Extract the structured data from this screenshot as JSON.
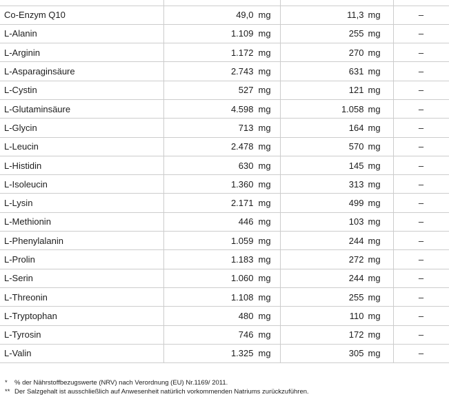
{
  "table": {
    "unit": "mg",
    "rows": [
      {
        "name": "Co-Enzym Q10",
        "per100_value": "49,0",
        "per100_unit": "mg",
        "portion_value": "11,3",
        "portion_unit": "mg",
        "nrv": "–"
      },
      {
        "name": "L-Alanin",
        "per100_value": "1.109",
        "per100_unit": "mg",
        "portion_value": "255",
        "portion_unit": "mg",
        "nrv": "–"
      },
      {
        "name": "L-Arginin",
        "per100_value": "1.172",
        "per100_unit": "mg",
        "portion_value": "270",
        "portion_unit": "mg",
        "nrv": "–"
      },
      {
        "name": "L-Asparaginsäure",
        "per100_value": "2.743",
        "per100_unit": "mg",
        "portion_value": "631",
        "portion_unit": "mg",
        "nrv": "–"
      },
      {
        "name": "L-Cystin",
        "per100_value": "527",
        "per100_unit": "mg",
        "portion_value": "121",
        "portion_unit": "mg",
        "nrv": "–"
      },
      {
        "name": "L-Glutaminsäure",
        "per100_value": "4.598",
        "per100_unit": "mg",
        "portion_value": "1.058",
        "portion_unit": "mg",
        "nrv": "–"
      },
      {
        "name": "L-Glycin",
        "per100_value": "713",
        "per100_unit": "mg",
        "portion_value": "164",
        "portion_unit": "mg",
        "nrv": "–"
      },
      {
        "name": "L-Leucin",
        "per100_value": "2.478",
        "per100_unit": "mg",
        "portion_value": "570",
        "portion_unit": "mg",
        "nrv": "–"
      },
      {
        "name": "L-Histidin",
        "per100_value": "630",
        "per100_unit": "mg",
        "portion_value": "145",
        "portion_unit": "mg",
        "nrv": "–"
      },
      {
        "name": "L-Isoleucin",
        "per100_value": "1.360",
        "per100_unit": "mg",
        "portion_value": "313",
        "portion_unit": "mg",
        "nrv": "–"
      },
      {
        "name": "L-Lysin",
        "per100_value": "2.171",
        "per100_unit": "mg",
        "portion_value": "499",
        "portion_unit": "mg",
        "nrv": "–"
      },
      {
        "name": "L-Methionin",
        "per100_value": "446",
        "per100_unit": "mg",
        "portion_value": "103",
        "portion_unit": "mg",
        "nrv": "–"
      },
      {
        "name": "L-Phenylalanin",
        "per100_value": "1.059",
        "per100_unit": "mg",
        "portion_value": "244",
        "portion_unit": "mg",
        "nrv": "–"
      },
      {
        "name": "L-Prolin",
        "per100_value": "1.183",
        "per100_unit": "mg",
        "portion_value": "272",
        "portion_unit": "mg",
        "nrv": "–"
      },
      {
        "name": "L-Serin",
        "per100_value": "1.060",
        "per100_unit": "mg",
        "portion_value": "244",
        "portion_unit": "mg",
        "nrv": "–"
      },
      {
        "name": "L-Threonin",
        "per100_value": "1.108",
        "per100_unit": "mg",
        "portion_value": "255",
        "portion_unit": "mg",
        "nrv": "–"
      },
      {
        "name": "L-Tryptophan",
        "per100_value": "480",
        "per100_unit": "mg",
        "portion_value": "110",
        "portion_unit": "mg",
        "nrv": "–"
      },
      {
        "name": "L-Tyrosin",
        "per100_value": "746",
        "per100_unit": "mg",
        "portion_value": "172",
        "portion_unit": "mg",
        "nrv": "–"
      },
      {
        "name": "L-Valin",
        "per100_value": "1.325",
        "per100_unit": "mg",
        "portion_value": "305",
        "portion_unit": "mg",
        "nrv": "–"
      }
    ]
  },
  "footnotes": [
    {
      "marker": "*",
      "text": "% der Nährstoffbezugswerte (NRV) nach Verordnung (EU) Nr.1169/ 2011."
    },
    {
      "marker": "**",
      "text": "Der Salzgehalt ist ausschließlich auf Anwesenheit natürlich vorkommenden Natriums zurückzuführen."
    }
  ],
  "colors": {
    "border": "#cccccc",
    "text": "#1c1c1c",
    "background": "#ffffff"
  }
}
